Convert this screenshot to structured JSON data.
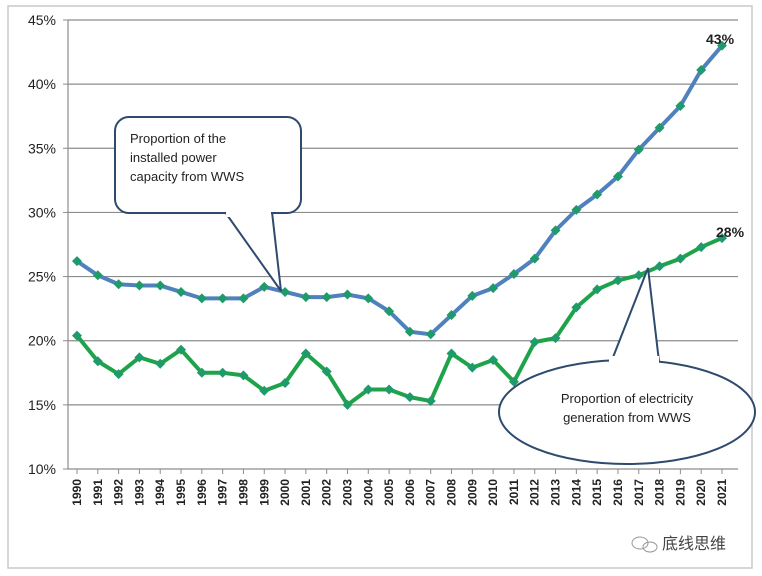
{
  "chart_data": {
    "type": "line",
    "title": "",
    "xlabel": "",
    "ylabel": "",
    "ylim": [
      10,
      45
    ],
    "yticks": [
      "10%",
      "15%",
      "20%",
      "25%",
      "30%",
      "35%",
      "40%",
      "45%"
    ],
    "ytick_values": [
      10,
      15,
      20,
      25,
      30,
      35,
      40,
      45
    ],
    "grid": true,
    "x": [
      "1990",
      "1991",
      "1992",
      "1993",
      "1994",
      "1995",
      "1996",
      "1997",
      "1998",
      "1999",
      "2000",
      "2001",
      "2002",
      "2003",
      "2004",
      "2005",
      "2006",
      "2007",
      "2008",
      "2009",
      "2010",
      "2011",
      "2012",
      "2013",
      "2014",
      "2015",
      "2016",
      "2017",
      "2018",
      "2019",
      "2020",
      "2021"
    ],
    "series": [
      {
        "name": "Proportion of the installed power capacity from WWS",
        "color": "#4f81bd",
        "values": [
          26.2,
          25.1,
          24.4,
          24.3,
          24.3,
          23.8,
          23.3,
          23.3,
          23.3,
          24.2,
          23.8,
          23.4,
          23.4,
          23.6,
          23.3,
          22.3,
          20.7,
          20.5,
          22.0,
          23.5,
          24.1,
          25.2,
          26.4,
          28.6,
          30.2,
          31.4,
          32.8,
          34.9,
          36.6,
          38.3,
          41.1,
          43.0
        ]
      },
      {
        "name": "Proportion of electricity generation from WWS",
        "color": "#1fa34a",
        "values": [
          20.4,
          18.4,
          17.4,
          18.7,
          18.2,
          19.3,
          17.5,
          17.5,
          17.3,
          16.1,
          16.7,
          19.0,
          17.6,
          15.0,
          16.2,
          16.2,
          15.6,
          15.3,
          19.0,
          17.9,
          18.5,
          16.8,
          19.9,
          20.2,
          22.6,
          24.0,
          24.7,
          25.1,
          25.8,
          26.4,
          27.3,
          28.0
        ]
      }
    ],
    "annotations": {
      "capacity_end_label": "43%",
      "generation_end_label": "28%",
      "capacity_callout": [
        "Proportion of the",
        "installed power",
        "capacity from WWS"
      ],
      "generation_callout": [
        "Proportion of electricity",
        "generation from WWS"
      ]
    },
    "marker_color": "#1f9a6a"
  },
  "watermark": "底线思维"
}
